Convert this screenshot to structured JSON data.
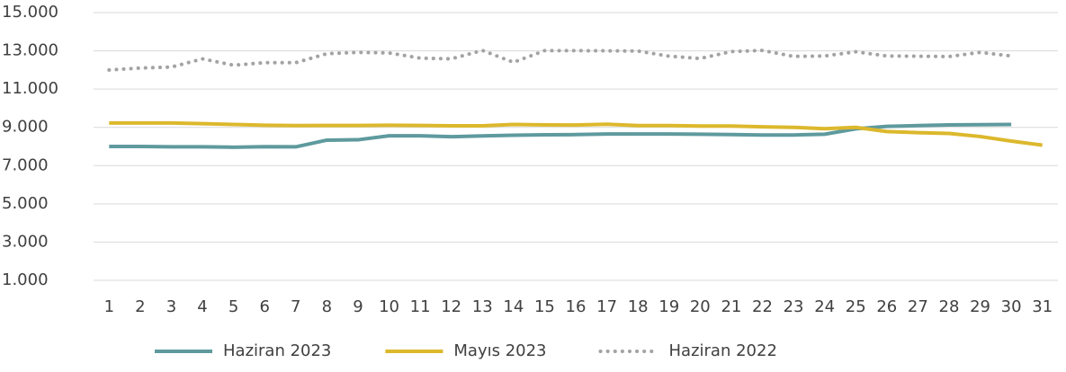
{
  "chart_data": {
    "type": "line",
    "categories": [
      "1",
      "2",
      "3",
      "4",
      "5",
      "6",
      "7",
      "8",
      "9",
      "10",
      "11",
      "12",
      "13",
      "14",
      "15",
      "16",
      "17",
      "18",
      "19",
      "20",
      "21",
      "22",
      "23",
      "24",
      "25",
      "26",
      "27",
      "28",
      "29",
      "30",
      "31"
    ],
    "series": [
      {
        "name": "Haziran 2023",
        "color": "#5e9a9e",
        "style": "solid",
        "values": [
          8000,
          8000,
          7980,
          7980,
          7960,
          7990,
          7980,
          8330,
          8350,
          8560,
          8560,
          8510,
          8550,
          8590,
          8610,
          8620,
          8650,
          8650,
          8650,
          8640,
          8620,
          8600,
          8600,
          8640,
          8920,
          9050,
          9090,
          9130,
          9140,
          9150,
          null
        ]
      },
      {
        "name": "Mayıs 2023",
        "color": "#dcb82c",
        "style": "solid",
        "values": [
          9230,
          9230,
          9230,
          9190,
          9150,
          9110,
          9090,
          9100,
          9100,
          9110,
          9100,
          9080,
          9080,
          9150,
          9130,
          9120,
          9160,
          9090,
          9090,
          9070,
          9070,
          9030,
          9000,
          8930,
          9000,
          8780,
          8720,
          8680,
          8520,
          8280,
          8070
        ]
      },
      {
        "name": "Haziran 2022",
        "color": "#a3a3a3",
        "style": "dotted",
        "values": [
          12000,
          12100,
          12150,
          12580,
          12250,
          12380,
          12380,
          12850,
          12920,
          12890,
          12620,
          12580,
          13020,
          12400,
          13010,
          13010,
          13000,
          12990,
          12720,
          12600,
          12960,
          13020,
          12710,
          12730,
          12950,
          12730,
          12720,
          12700,
          12920,
          12730,
          null
        ]
      }
    ],
    "ylim": [
      1000,
      15000
    ],
    "yticks": [
      {
        "value": 1000,
        "label": "1.000"
      },
      {
        "value": 3000,
        "label": "3.000"
      },
      {
        "value": 5000,
        "label": "5.000"
      },
      {
        "value": 7000,
        "label": "7.000"
      },
      {
        "value": 9000,
        "label": "9.000"
      },
      {
        "value": 11000,
        "label": "11.000"
      },
      {
        "value": 13000,
        "label": "13.000"
      },
      {
        "value": 15000,
        "label": "15.000"
      }
    ],
    "grid": true,
    "legend": "bottom"
  }
}
